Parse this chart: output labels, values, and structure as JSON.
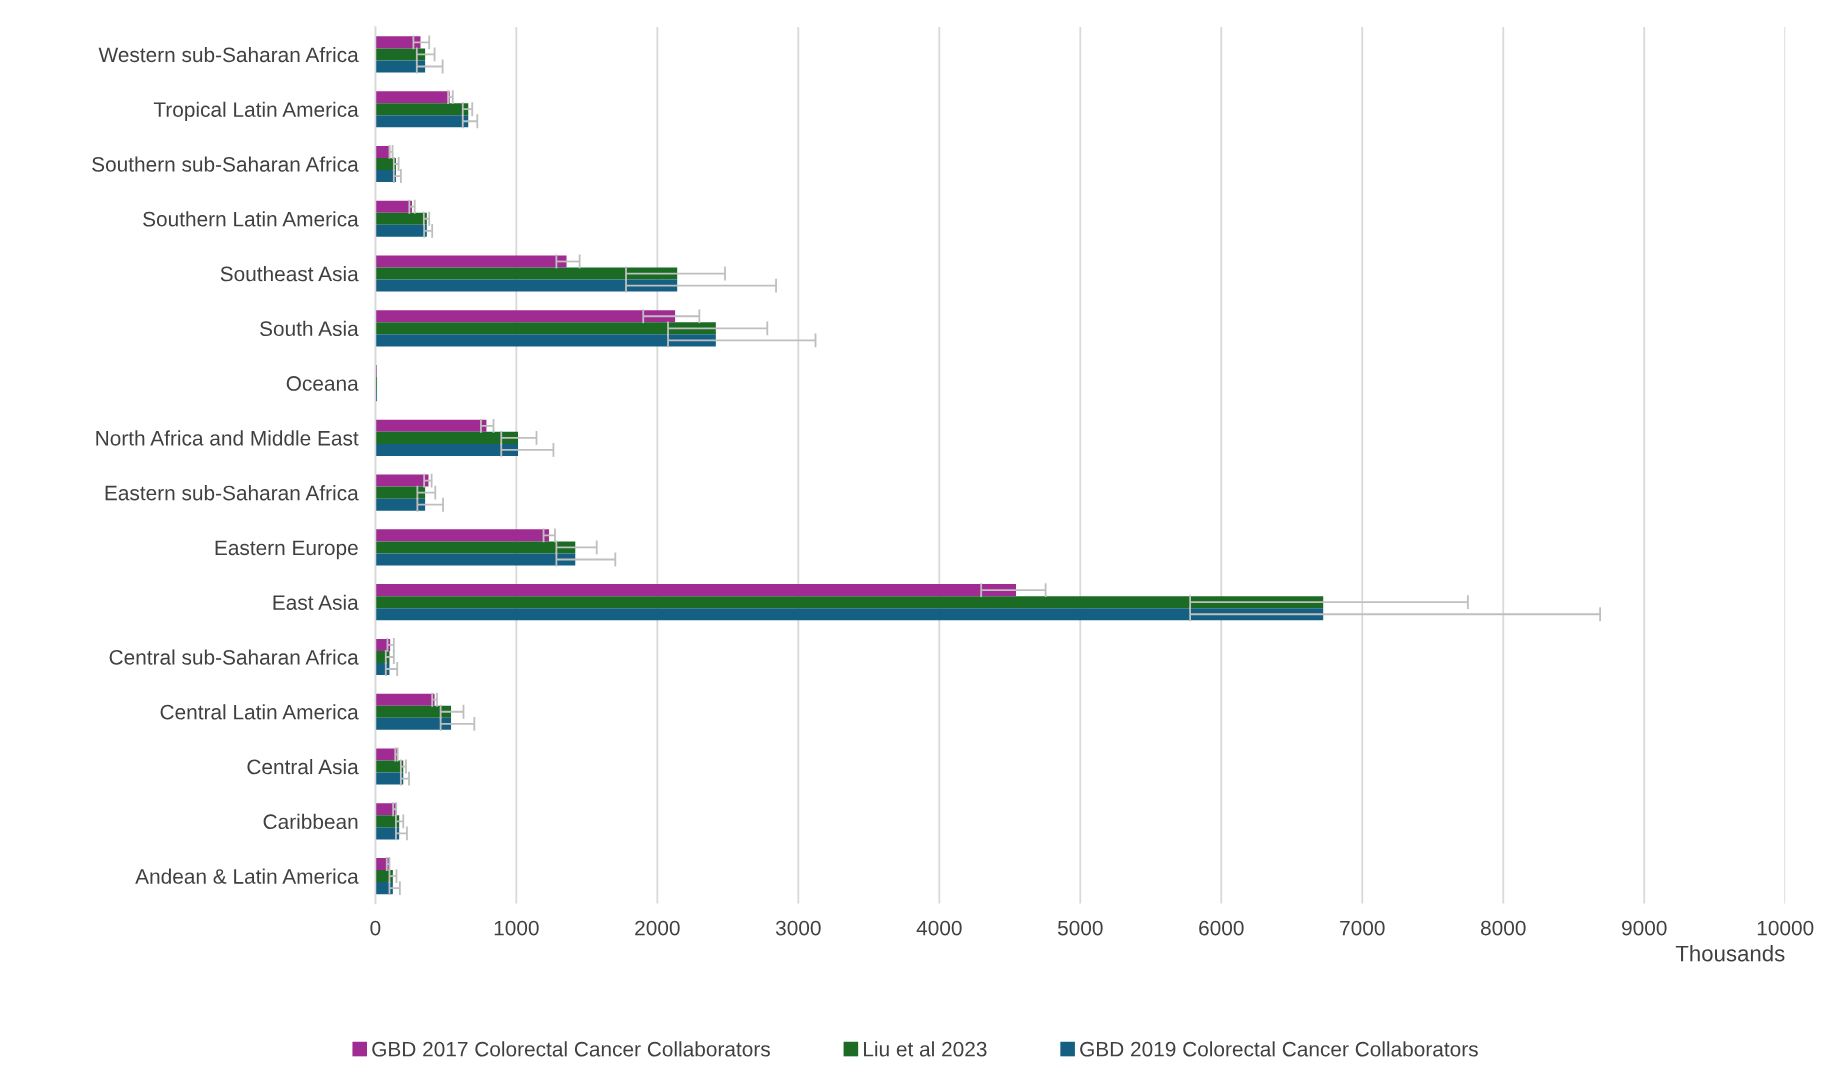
{
  "chart_data": {
    "type": "bar",
    "orientation": "horizontal",
    "xlabel": "Thousands",
    "categories": [
      "Western sub-Saharan Africa",
      "Tropical Latin America",
      "Southern sub-Saharan Africa",
      "Southern Latin America",
      "Southeast Asia",
      "South Asia",
      "Oceana",
      "North Africa and Middle East",
      "Eastern sub-Saharan Africa",
      "Eastern Europe",
      "East Asia",
      "Central sub-Saharan Africa",
      "Central Latin America",
      "Central Asia",
      "Caribbean",
      "Andean & Latin America"
    ],
    "series": [
      {
        "name": "GBD 2017 Colorectal Cancer Collaborators",
        "color": "#a02b93",
        "values": [
          320,
          527,
          105,
          260,
          1356,
          2126,
          10,
          788,
          377,
          1232,
          4544,
          105,
          420,
          158,
          148,
          100
        ],
        "errors": [
          [
            270,
            382
          ],
          [
            516,
            549
          ],
          [
            100,
            122
          ],
          [
            241,
            279
          ],
          [
            1284,
            1449
          ],
          [
            1900,
            2298
          ],
          null,
          [
            749,
            838
          ],
          [
            346,
            399
          ],
          [
            1193,
            1274
          ],
          [
            4297,
            4754
          ],
          [
            86,
            131
          ],
          [
            403,
            437
          ],
          [
            141,
            158
          ],
          [
            126,
            148
          ],
          [
            81,
            100
          ]
        ]
      },
      {
        "name": "Liu et al 2023",
        "color": "#1b6b24",
        "values": [
          353,
          659,
          146,
          365,
          2141,
          2415,
          12,
          1012,
          353,
          1418,
          6723,
          100,
          537,
          198,
          169,
          124
        ],
        "errors": [
          [
            294,
            420
          ],
          [
            620,
            687
          ],
          [
            131,
            165
          ],
          [
            344,
            382
          ],
          [
            1778,
            2480
          ],
          [
            2076,
            2780
          ],
          null,
          [
            893,
            1143
          ],
          [
            298,
            425
          ],
          [
            1284,
            1570
          ],
          [
            5779,
            7749
          ],
          [
            74,
            131
          ],
          [
            463,
            625
          ],
          [
            181,
            217
          ],
          [
            146,
            198
          ],
          [
            100,
            150
          ]
        ]
      },
      {
        "name": "GBD 2019 Colorectal Cancer Collaborators",
        "color": "#156082",
        "values": [
          353,
          659,
          146,
          365,
          2141,
          2415,
          12,
          1012,
          353,
          1418,
          6723,
          100,
          537,
          198,
          169,
          124
        ],
        "errors": [
          [
            294,
            477
          ],
          [
            620,
            723
          ],
          [
            131,
            181
          ],
          [
            346,
            403
          ],
          [
            1778,
            2842
          ],
          [
            2076,
            3122
          ],
          null,
          [
            893,
            1263
          ],
          [
            298,
            480
          ],
          [
            1284,
            1702
          ],
          [
            5779,
            8687
          ],
          [
            74,
            155
          ],
          [
            463,
            702
          ],
          [
            181,
            239
          ],
          [
            146,
            224
          ],
          [
            100,
            174
          ]
        ]
      }
    ],
    "xlim": [
      0,
      10000
    ],
    "xticks": [
      0,
      1000,
      2000,
      3000,
      4000,
      5000,
      6000,
      7000,
      8000,
      9000,
      10000
    ],
    "grid": "x",
    "legend": "bottom"
  }
}
